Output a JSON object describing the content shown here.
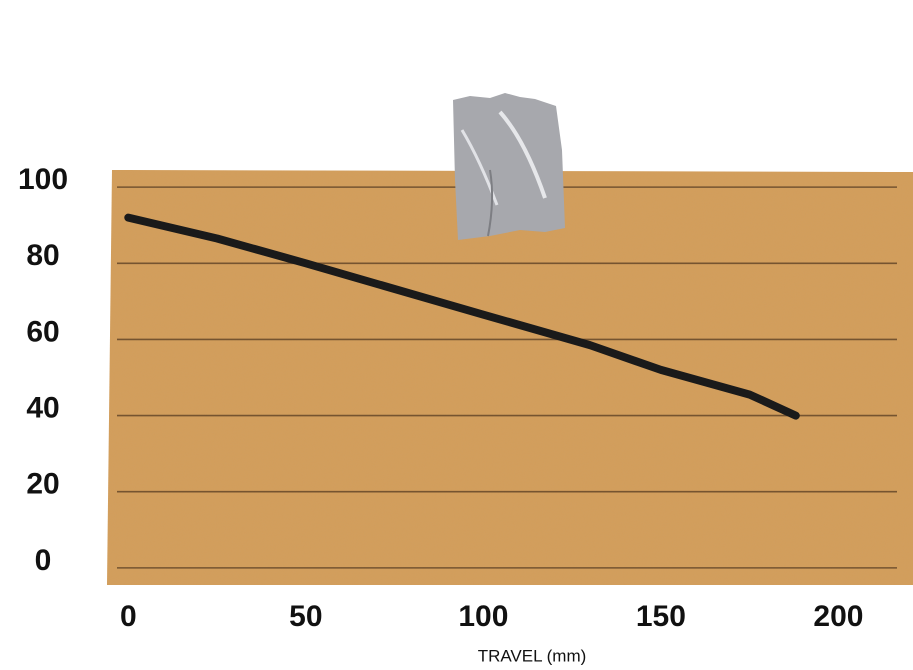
{
  "chart_data": {
    "type": "line",
    "x_label": "TRAVEL (mm)",
    "x": [
      0,
      25,
      50,
      100,
      130,
      150,
      175,
      188
    ],
    "values": [
      92,
      86.5,
      80,
      66.5,
      58.5,
      52,
      45.5,
      40
    ],
    "color": "#1a1a1a",
    "xlim": [
      -6,
      221
    ],
    "xticks": [
      0,
      50,
      100,
      150,
      200
    ],
    "ylim": [
      -4.5,
      104.5
    ],
    "yticks": [
      0,
      20,
      40,
      60,
      80,
      100
    ],
    "grid": true
  }
}
